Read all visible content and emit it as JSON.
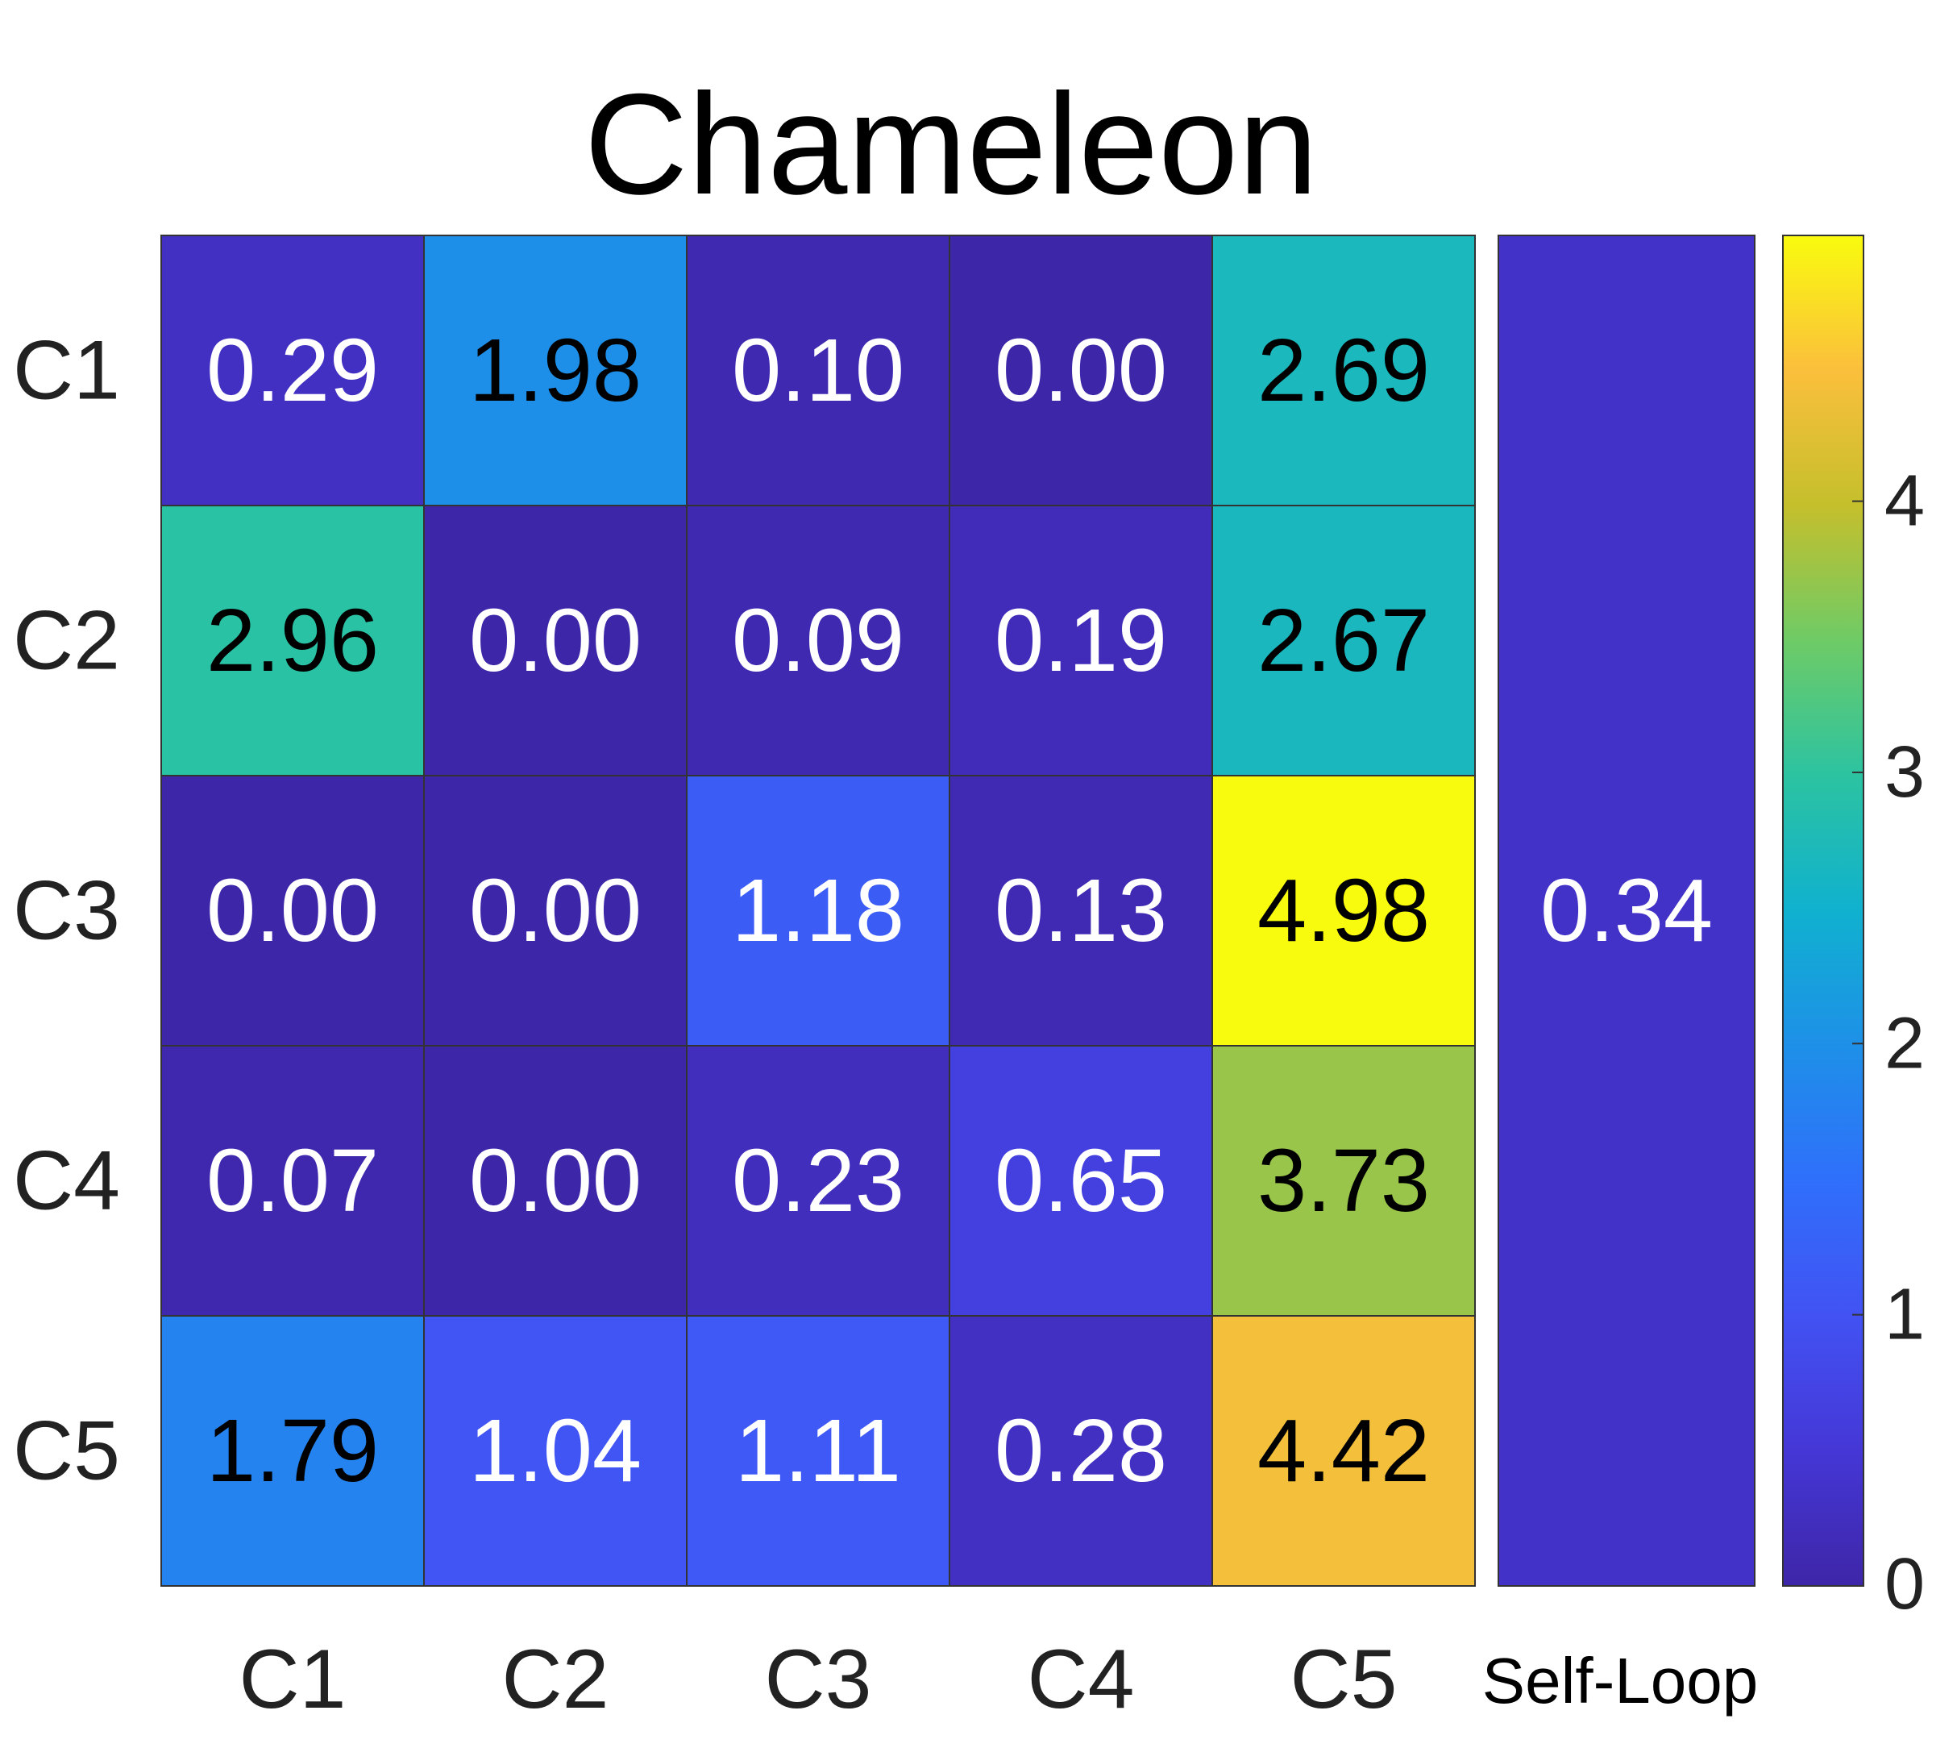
{
  "chart_data": {
    "type": "heatmap",
    "title": "Chameleon",
    "rows": [
      "C1",
      "C2",
      "C3",
      "C4",
      "C5"
    ],
    "cols": [
      "C1",
      "C2",
      "C3",
      "C4",
      "C5"
    ],
    "values": [
      [
        "0.29",
        "1.98",
        "0.10",
        "0.00",
        "2.69"
      ],
      [
        "2.96",
        "0.00",
        "0.09",
        "0.19",
        "2.67"
      ],
      [
        "0.00",
        "0.00",
        "1.18",
        "0.13",
        "4.98"
      ],
      [
        "0.07",
        "0.00",
        "0.23",
        "0.65",
        "3.73"
      ],
      [
        "1.79",
        "1.04",
        "1.11",
        "0.28",
        "4.42"
      ]
    ],
    "self_loop": {
      "label": "Self-Loop",
      "value": "0.34"
    },
    "colorbar": {
      "min": 0,
      "max": 4.98,
      "ticks": [
        "0",
        "1",
        "2",
        "3",
        "4"
      ],
      "colormap": "parula"
    },
    "colors": {
      "text_light": "#ffffff",
      "text_dark": "#000000",
      "grid": "#333333"
    }
  }
}
